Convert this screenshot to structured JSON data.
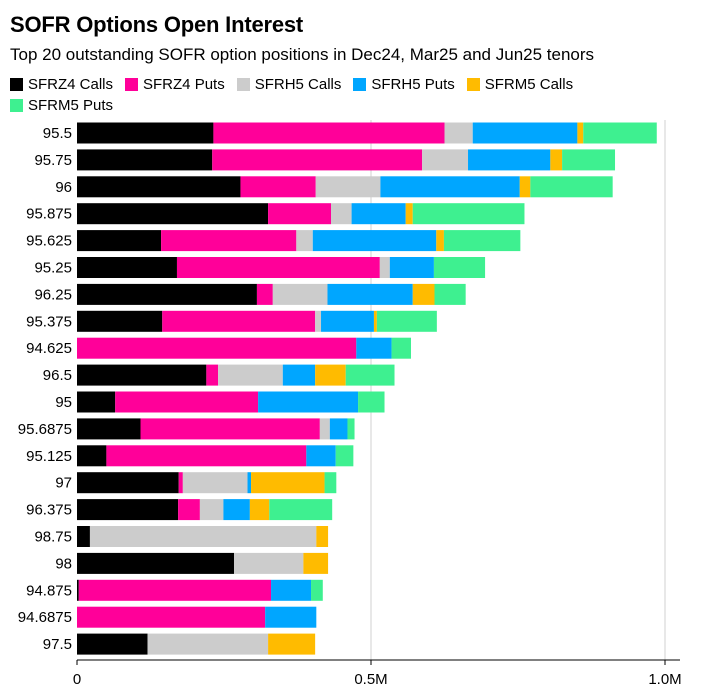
{
  "title": "SOFR Options Open Interest",
  "subtitle": "Top 20 outstanding SOFR option positions in Dec24, Mar25 and Jun25 tenors",
  "chart_data": {
    "type": "bar",
    "orientation": "horizontal",
    "stacked": true,
    "categories": [
      "95.5",
      "95.75",
      "96",
      "95.875",
      "95.625",
      "95.25",
      "96.25",
      "95.375",
      "94.625",
      "96.5",
      "95",
      "95.6875",
      "95.125",
      "97",
      "96.375",
      "98.75",
      "98",
      "94.875",
      "94.6875",
      "97.5"
    ],
    "series": [
      {
        "name": "SFRZ4 Calls",
        "color": "#000000",
        "values": [
          232000,
          230000,
          278000,
          325000,
          143000,
          170000,
          306000,
          145000,
          0,
          220000,
          65000,
          108000,
          50000,
          173000,
          172000,
          22000,
          267000,
          3000,
          0,
          120000
        ]
      },
      {
        "name": "SFRZ4 Puts",
        "color": "#ff0099",
        "values": [
          393000,
          357000,
          128000,
          107000,
          230000,
          345000,
          27000,
          260000,
          475000,
          20000,
          243000,
          305000,
          340000,
          7000,
          37000,
          0,
          0,
          327000,
          320000,
          0
        ]
      },
      {
        "name": "SFRH5 Calls",
        "color": "#cccccc",
        "values": [
          48000,
          78000,
          110000,
          35000,
          28000,
          17000,
          93000,
          10000,
          0,
          110000,
          0,
          17000,
          0,
          110000,
          40000,
          385000,
          118000,
          0,
          0,
          205000
        ]
      },
      {
        "name": "SFRH5 Puts",
        "color": "#00a6ff",
        "values": [
          178000,
          140000,
          237000,
          92000,
          210000,
          75000,
          145000,
          90000,
          60000,
          55000,
          170000,
          30000,
          50000,
          6000,
          45000,
          0,
          0,
          68000,
          87000,
          0
        ]
      },
      {
        "name": "SFRM5 Calls",
        "color": "#ffbb00",
        "values": [
          10000,
          20000,
          18000,
          12000,
          13000,
          0,
          37000,
          5000,
          0,
          52000,
          0,
          0,
          0,
          125000,
          33000,
          20000,
          42000,
          0,
          0,
          80000
        ]
      },
      {
        "name": "SFRM5 Puts",
        "color": "#3ef090",
        "values": [
          125000,
          90000,
          140000,
          190000,
          130000,
          87000,
          53000,
          102000,
          33000,
          83000,
          45000,
          12000,
          30000,
          20000,
          107000,
          0,
          0,
          20000,
          0,
          0
        ]
      }
    ],
    "xlim": [
      0,
      1040000
    ],
    "xticks": [
      0,
      500000,
      1000000
    ],
    "xtick_labels": [
      "0",
      "0.5M",
      "1.0M"
    ],
    "grid": "vertical",
    "legend": "top"
  }
}
